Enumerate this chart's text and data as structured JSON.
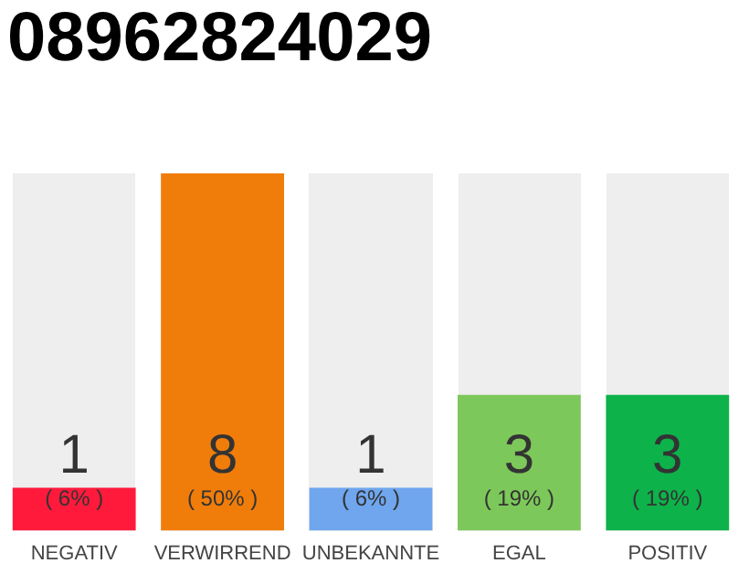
{
  "chart_data": {
    "type": "bar",
    "title": "08962824029",
    "categories": [
      "NEGATIV",
      "VERWIRREND",
      "UNBEKANNTE",
      "EGAL",
      "POSITIV"
    ],
    "values": [
      6,
      50,
      6,
      19,
      19
    ],
    "colors": [
      "#ff1a3c",
      "#f07d0a",
      "#6fa6ee",
      "#7dc85a",
      "#0db24a"
    ],
    "value_labels": [
      "( 6% )",
      "( 50% )",
      "( 6% )",
      "( 19% )",
      "( 19% )"
    ],
    "annotations": [
      "1",
      "8",
      "1",
      "3",
      "3"
    ],
    "tick_labels": "x",
    "grid": false,
    "legend": false
  }
}
